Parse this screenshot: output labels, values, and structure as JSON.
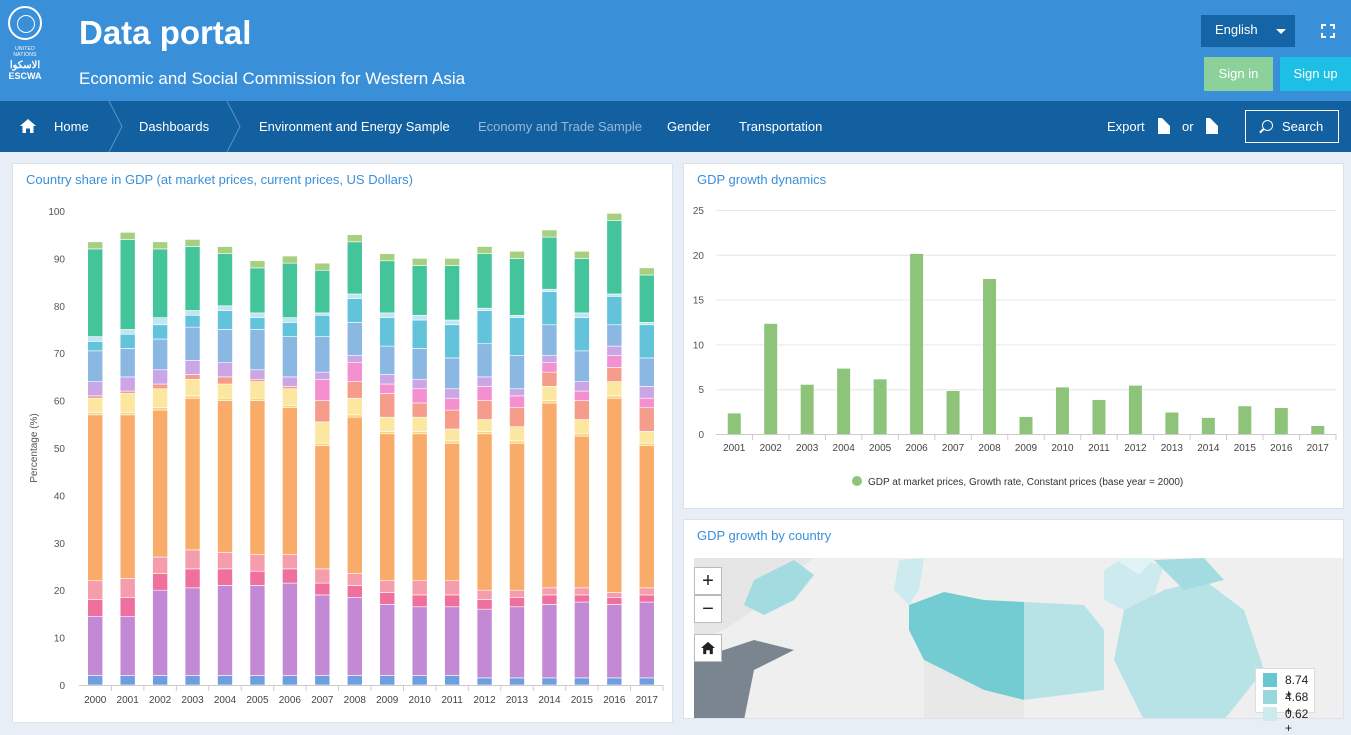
{
  "header": {
    "logo_top": "UNITED NATIONS",
    "logo_arabic": "الاسكوا",
    "logo_name": "ESCWA",
    "title": "Data portal",
    "subtitle": "Economic and Social Commission for Western Asia",
    "language": "English",
    "signin_label": "Sign in",
    "signup_label": "Sign up"
  },
  "nav": {
    "items": [
      "Home",
      "Dashboards",
      "Environment and Energy Sample",
      "Economy and Trade Sample",
      "Gender",
      "Transportation"
    ],
    "active_index": 3,
    "export_label": "Export",
    "or_label": "or",
    "search_label": "Search"
  },
  "panels": {
    "share_title": "Country share in GDP (at market prices, current prices, US Dollars)",
    "growth_title": "GDP growth dynamics",
    "map_title": "GDP growth by country"
  },
  "map": {
    "zoom_in": "+",
    "zoom_out": "−",
    "legend": [
      "8.74 +",
      "4.68 +",
      "0.62 +"
    ],
    "legend_colors": [
      "#67c6cf",
      "#9ad7dc",
      "#cdebee"
    ]
  },
  "chart_data": [
    {
      "type": "bar",
      "stacked": true,
      "title": "Country share in GDP (at market prices, current prices, US Dollars)",
      "ylabel": "Percentage (%)",
      "ylim": [
        0,
        100
      ],
      "yticks": [
        0,
        10,
        20,
        30,
        40,
        50,
        60,
        70,
        80,
        90,
        100
      ],
      "categories": [
        "2000",
        "2001",
        "2002",
        "2003",
        "2004",
        "2005",
        "2006",
        "2007",
        "2008",
        "2009",
        "2010",
        "2011",
        "2012",
        "2013",
        "2014",
        "2015",
        "2016",
        "2017"
      ],
      "colors": [
        "#6d9fe0",
        "#c389d4",
        "#ef6f9d",
        "#f59dad",
        "#f9ac6a",
        "#fad27a",
        "#fbe7a0",
        "#f59c8a",
        "#f48fd0",
        "#cba6e6",
        "#8ab8e3",
        "#62c3db",
        "#bfe6f2",
        "#44c49a",
        "#a6cf7f"
      ],
      "values": [
        [
          2,
          2,
          2,
          2,
          2,
          2,
          2,
          2,
          2,
          2,
          2,
          2,
          1.5,
          1.5,
          1.5,
          1.5,
          1.5,
          1.5
        ],
        [
          12.5,
          12.5,
          18,
          18.5,
          19,
          19,
          19.5,
          17,
          16.5,
          15,
          14.5,
          14.5,
          14.5,
          15,
          15.5,
          16,
          15.5,
          16
        ],
        [
          3.5,
          4,
          3.5,
          4,
          3.5,
          3,
          3,
          2.5,
          2.5,
          2.5,
          2.5,
          2.5,
          2,
          2,
          2,
          1.5,
          1.5,
          1.5
        ],
        [
          4,
          4,
          3.5,
          4,
          3.5,
          3.5,
          3,
          3,
          2.5,
          2.5,
          3,
          3,
          2,
          1.5,
          1.5,
          1.5,
          1,
          1.5
        ],
        [
          35,
          34.5,
          31,
          32,
          32,
          32.5,
          31,
          26,
          33,
          31,
          31,
          29,
          33,
          31,
          39,
          32,
          41,
          30
        ],
        [
          0.5,
          0.5,
          0.5,
          0.5,
          0.5,
          0.5,
          0.5,
          0.5,
          0.5,
          0.5,
          0.5,
          0.5,
          0.5,
          0.5,
          0.5,
          0.5,
          0.5,
          0.5
        ],
        [
          3,
          4,
          4,
          3.5,
          3,
          3.5,
          3.5,
          4.5,
          3.5,
          3,
          3,
          2.5,
          2.5,
          3,
          3,
          3,
          3,
          2.5
        ],
        [
          0.5,
          0.5,
          1,
          1,
          1.5,
          0.5,
          0.5,
          4.5,
          3.5,
          5,
          3,
          4,
          4,
          4,
          3,
          4,
          3,
          5
        ],
        [
          0,
          0,
          0,
          0,
          0,
          0,
          0,
          4.5,
          4,
          2,
          3,
          2.5,
          3,
          2.5,
          2,
          2,
          2.5,
          2
        ],
        [
          3,
          3,
          3,
          3,
          3,
          2,
          2,
          1.5,
          1.5,
          2,
          2,
          2,
          2,
          1.5,
          1.5,
          2,
          2,
          2.5
        ],
        [
          6.5,
          6,
          6.5,
          7,
          7,
          8.5,
          8.5,
          7.5,
          7,
          6,
          6.5,
          6.5,
          7,
          7,
          6.5,
          6.5,
          4.5,
          6
        ],
        [
          2,
          3,
          3,
          2.5,
          4,
          2.5,
          3,
          4.5,
          5,
          6,
          6,
          7,
          7,
          8,
          7,
          7,
          6,
          7
        ],
        [
          1,
          1,
          1.5,
          1,
          1,
          1,
          1,
          0.5,
          1,
          1,
          1,
          1,
          0.5,
          0.5,
          0.5,
          1,
          0.5,
          0.5
        ],
        [
          18.5,
          19,
          14.5,
          13.5,
          11,
          9.5,
          11.5,
          9,
          11,
          11,
          10.5,
          11.5,
          11.5,
          12,
          11,
          11.5,
          15.5,
          10
        ],
        [
          1.5,
          1.5,
          1.5,
          1.5,
          1.5,
          1.5,
          1.5,
          1.5,
          1.5,
          1.5,
          1.5,
          1.5,
          1.5,
          1.5,
          1.5,
          1.5,
          1.5,
          1.5
        ]
      ]
    },
    {
      "type": "bar",
      "title": "GDP growth dynamics",
      "ylim": [
        0,
        25
      ],
      "yticks": [
        0,
        5,
        10,
        15,
        20,
        25
      ],
      "categories": [
        "2001",
        "2002",
        "2003",
        "2004",
        "2005",
        "2006",
        "2007",
        "2008",
        "2009",
        "2010",
        "2011",
        "2012",
        "2013",
        "2014",
        "2015",
        "2016",
        "2017"
      ],
      "series": [
        {
          "name": "GDP at market prices, Growth rate, Constant prices (base year = 2000)",
          "color": "#8dc47a",
          "values": [
            2.3,
            12.3,
            5.5,
            7.3,
            6.1,
            20.1,
            4.8,
            17.3,
            1.9,
            5.2,
            3.8,
            5.4,
            2.4,
            1.8,
            3.1,
            2.9,
            0.9
          ]
        }
      ]
    }
  ]
}
